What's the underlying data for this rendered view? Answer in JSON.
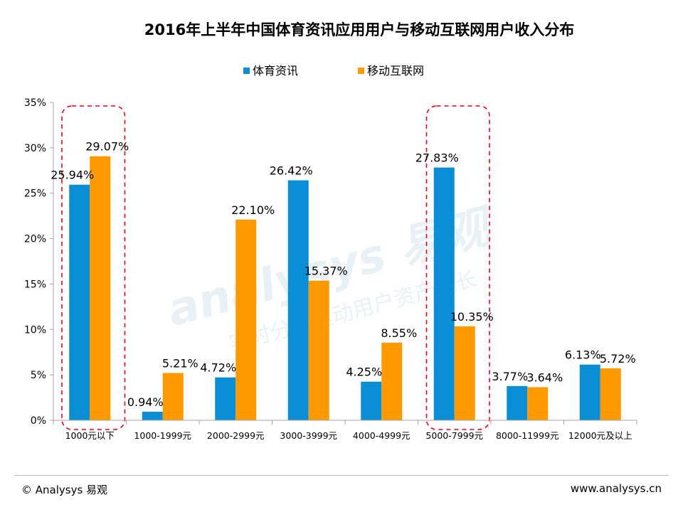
{
  "chart_data": {
    "type": "bar",
    "title": "2016年上半年中国体育资讯应用用户与移动互联网用户收入分布",
    "categories": [
      "1000元以下",
      "1000-1999元",
      "2000-2999元",
      "3000-3999元",
      "4000-4999元",
      "5000-7999元",
      "8000-11999元",
      "12000元及以上"
    ],
    "series": [
      {
        "name": "体育资讯",
        "color": "#0a8fd6",
        "values": [
          25.94,
          0.94,
          4.72,
          26.42,
          4.25,
          27.83,
          3.77,
          6.13
        ],
        "labels": [
          "25.94%",
          "0.94%",
          "4.72%",
          "26.42%",
          "4.25%",
          "27.83%",
          "3.77%",
          "6.13%"
        ]
      },
      {
        "name": "移动互联网",
        "color": "#ff9900",
        "values": [
          29.07,
          5.21,
          22.1,
          15.37,
          8.55,
          10.35,
          3.64,
          5.72
        ],
        "labels": [
          "29.07%",
          "5.21%",
          "22.10%",
          "15.37%",
          "8.55%",
          "10.35%",
          "3.64%",
          "5.72%"
        ]
      }
    ],
    "yticks": [
      "0%",
      "5%",
      "10%",
      "15%",
      "20%",
      "25%",
      "30%",
      "35%"
    ],
    "ylim": [
      0,
      35
    ],
    "xlabel": "",
    "ylabel": "",
    "legend_position": "top-center",
    "highlighted_categories": [
      "1000元以下",
      "5000-7999元"
    ],
    "highlight_color": "#e3001b"
  },
  "watermark": {
    "brand": "analysys 易观",
    "slogan": "实时分析驱动用户资产成长"
  },
  "footer": {
    "copyright": "© Analysys 易观",
    "website": "www.analysys.cn"
  }
}
